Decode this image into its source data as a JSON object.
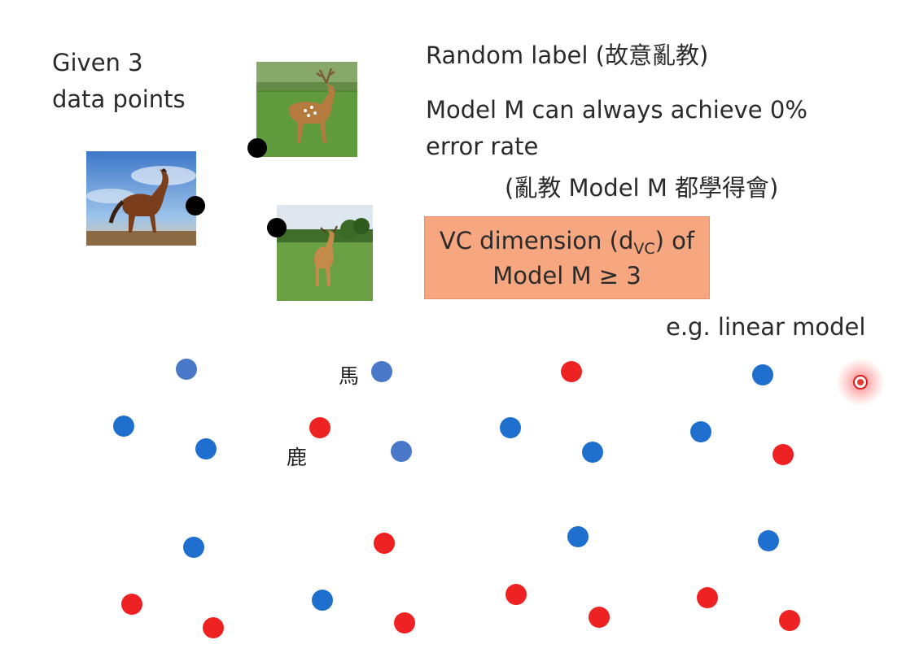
{
  "given_text": [
    "Given 3",
    "data points"
  ],
  "random_label": "Random label (故意亂教)",
  "model_text": [
    "Model M can always achieve 0%",
    "error rate"
  ],
  "model_text_cn": "(亂教 Model M 都學得會)",
  "vc_box": {
    "line1_pre": "VC dimension (d",
    "line1_sub": "VC",
    "line1_post": ") of",
    "line2": "Model M ≥ 3"
  },
  "example_text": "e.g. linear model",
  "labels": {
    "horse": "馬",
    "deer": "鹿"
  },
  "colors": {
    "blue": "#1f6fcf",
    "blue_light": "#4a78c8",
    "red": "#ee2222",
    "vc_box_bg": "#f7a780"
  },
  "photos": [
    "horse-photo",
    "deer-photo-top",
    "deer-photo-bottom"
  ],
  "dot_groups": [
    [
      "blue_light",
      "blue",
      "blue"
    ],
    [
      "blue_light",
      "red",
      "blue_light"
    ],
    [
      "red",
      "blue",
      "blue"
    ],
    [
      "blue",
      "blue",
      "red"
    ],
    [
      "blue",
      "red",
      "red"
    ],
    [
      "red",
      "blue",
      "red"
    ],
    [
      "blue",
      "red",
      "red"
    ],
    [
      "blue",
      "red",
      "red"
    ]
  ]
}
